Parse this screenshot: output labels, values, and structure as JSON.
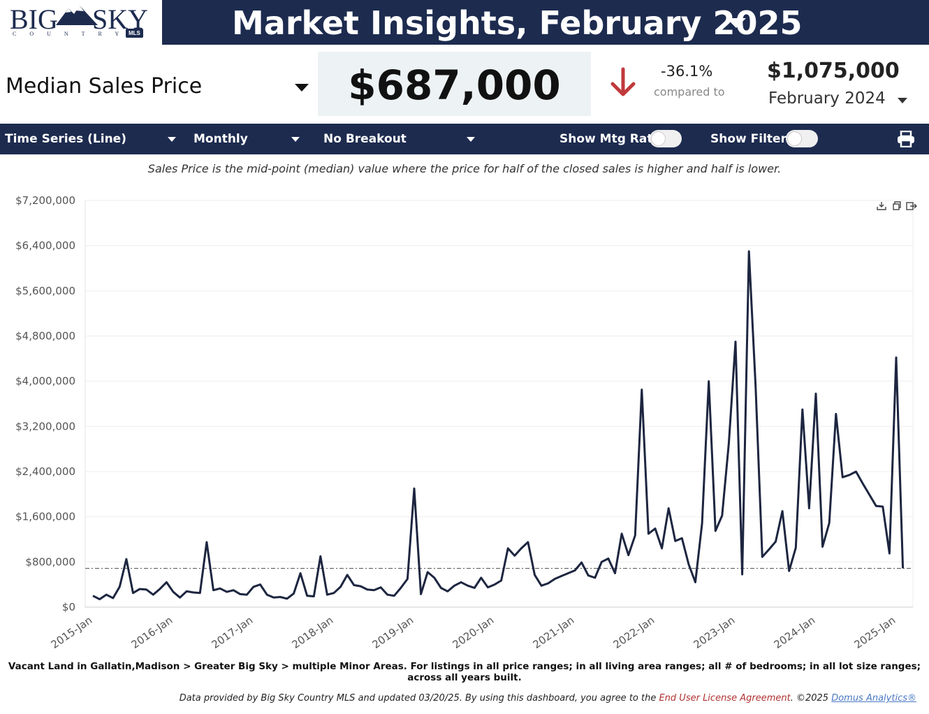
{
  "logo": {
    "big": "BIG",
    "sky": "SKY",
    "country": "COUNTRY",
    "mls": "MLS"
  },
  "header": {
    "title": "Market Insights, February 2025"
  },
  "metric": {
    "label": "Median Sales Price",
    "value": "$687,000",
    "change_pct": "-36.1%",
    "compared_to": "compared to",
    "compare_value": "$1,075,000",
    "compare_period": "February 2024"
  },
  "toolbar": {
    "chart_type": "Time Series (Line)",
    "interval": "Monthly",
    "breakout": "No Breakout",
    "show_mtg_rate": "Show Mtg Rate:",
    "show_filters": "Show Filters:"
  },
  "description": "Sales Price is the mid-point (median) value where the price for half of the closed sales is higher and half is lower.",
  "chart_data": {
    "type": "line",
    "y_tick_labels": [
      "$0",
      "$800,000",
      "$1,600,000",
      "$2,400,000",
      "$3,200,000",
      "$4,000,000",
      "$4,800,000",
      "$5,600,000",
      "$6,400,000",
      "$7,200,000"
    ],
    "x_tick_labels": [
      "2015-Jan",
      "2016-Jan",
      "2017-Jan",
      "2018-Jan",
      "2019-Jan",
      "2020-Jan",
      "2021-Jan",
      "2022-Jan",
      "2023-Jan",
      "2024-Jan",
      "2025-Jan"
    ],
    "ylim": [
      0,
      7200000
    ],
    "x_start": "2015-01",
    "reference_value": 687000,
    "grid": true,
    "colors": {
      "line": "#1d2640",
      "reference": "#555555",
      "grid": "#eeeeee"
    },
    "values": [
      200000,
      140000,
      220000,
      160000,
      360000,
      850000,
      250000,
      320000,
      310000,
      220000,
      320000,
      440000,
      270000,
      170000,
      280000,
      260000,
      250000,
      1150000,
      300000,
      330000,
      270000,
      300000,
      230000,
      220000,
      360000,
      400000,
      220000,
      170000,
      180000,
      150000,
      240000,
      600000,
      200000,
      190000,
      900000,
      220000,
      250000,
      360000,
      570000,
      390000,
      370000,
      310000,
      300000,
      350000,
      220000,
      200000,
      340000,
      500000,
      2100000,
      230000,
      620000,
      520000,
      340000,
      280000,
      380000,
      440000,
      380000,
      340000,
      520000,
      350000,
      400000,
      470000,
      1040000,
      910000,
      1040000,
      1150000,
      570000,
      380000,
      420000,
      500000,
      550000,
      600000,
      650000,
      790000,
      560000,
      520000,
      800000,
      860000,
      600000,
      1300000,
      920000,
      1270000,
      3850000,
      1300000,
      1390000,
      1040000,
      1750000,
      1170000,
      1220000,
      760000,
      440000,
      1480000,
      4000000,
      1350000,
      1620000,
      2900000,
      4700000,
      580000,
      6300000,
      3900000,
      890000,
      1020000,
      1160000,
      1700000,
      640000,
      1050000,
      3500000,
      1750000,
      3780000,
      1070000,
      1490000,
      3420000,
      2300000,
      2340000,
      2400000,
      2190000,
      1990000,
      1790000,
      1780000,
      950000,
      4420000,
      687000
    ]
  },
  "filters_text": "Vacant Land in Gallatin,Madison > Greater Big Sky > multiple Minor Areas. For listings in all price ranges; in all living area ranges; all # of bedrooms; in all lot size ranges; across all years built.",
  "footer": {
    "text": "Data provided by Big Sky Country MLS and updated 03/20/25.  By using this dashboard, you agree to the ",
    "eula": "End User License Agreement",
    "copyright": ".  ©2025 ",
    "domus": "Domus Analytics®"
  }
}
